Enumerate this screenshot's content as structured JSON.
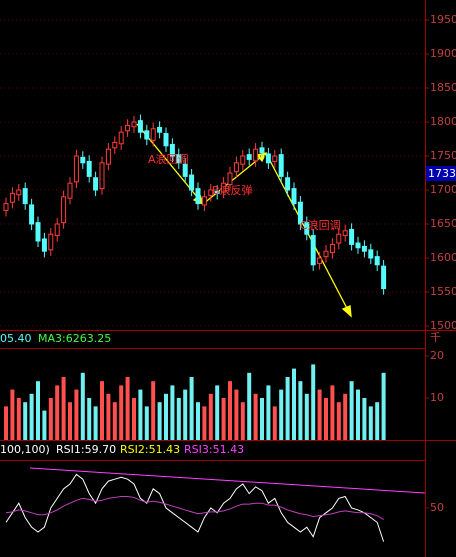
{
  "chart_data": [
    {
      "type": "candlestick",
      "open": [
        1670,
        1682,
        1693,
        1702,
        1678,
        1652,
        1628,
        1612,
        1633,
        1652,
        1688,
        1712,
        1748,
        1742,
        1718,
        1702,
        1738,
        1762,
        1768,
        1787,
        1793,
        1802,
        1787,
        1773,
        1792,
        1783,
        1767,
        1752,
        1738,
        1722,
        1702,
        1678,
        1692,
        1698,
        1697,
        1708,
        1727,
        1738,
        1752,
        1743,
        1762,
        1753,
        1742,
        1752,
        1718,
        1702,
        1682,
        1652,
        1633,
        1592,
        1602,
        1608,
        1622,
        1633,
        1642,
        1622,
        1617,
        1612,
        1602,
        1588
      ],
      "high": [
        1689,
        1704,
        1709,
        1711,
        1687,
        1661,
        1637,
        1644,
        1659,
        1699,
        1719,
        1759,
        1757,
        1751,
        1727,
        1749,
        1769,
        1779,
        1794,
        1804,
        1809,
        1811,
        1796,
        1799,
        1801,
        1792,
        1776,
        1761,
        1747,
        1731,
        1711,
        1699,
        1709,
        1707,
        1719,
        1734,
        1749,
        1759,
        1761,
        1769,
        1771,
        1762,
        1759,
        1761,
        1727,
        1711,
        1691,
        1661,
        1642,
        1609,
        1619,
        1629,
        1644,
        1649,
        1651,
        1631,
        1626,
        1621,
        1611,
        1597
      ],
      "low": [
        1661,
        1673,
        1684,
        1671,
        1641,
        1616,
        1601,
        1603,
        1624,
        1643,
        1679,
        1703,
        1731,
        1711,
        1691,
        1693,
        1729,
        1753,
        1759,
        1778,
        1784,
        1776,
        1766,
        1764,
        1776,
        1756,
        1741,
        1731,
        1711,
        1691,
        1671,
        1669,
        1683,
        1686,
        1688,
        1699,
        1718,
        1729,
        1736,
        1734,
        1746,
        1731,
        1733,
        1711,
        1691,
        1671,
        1641,
        1626,
        1581,
        1583,
        1593,
        1599,
        1613,
        1624,
        1611,
        1606,
        1601,
        1591,
        1581,
        1546
      ],
      "close": [
        1680,
        1695,
        1700,
        1680,
        1650,
        1625,
        1610,
        1635,
        1650,
        1690,
        1710,
        1750,
        1740,
        1720,
        1700,
        1740,
        1760,
        1770,
        1785,
        1795,
        1800,
        1785,
        1775,
        1790,
        1785,
        1765,
        1750,
        1740,
        1720,
        1700,
        1680,
        1690,
        1700,
        1695,
        1710,
        1725,
        1740,
        1750,
        1745,
        1760,
        1755,
        1740,
        1750,
        1720,
        1700,
        1680,
        1650,
        1635,
        1590,
        1600,
        1610,
        1620,
        1635,
        1640,
        1620,
        1615,
        1610,
        1600,
        1590,
        1555
      ],
      "up_color": "#ff3c3c",
      "down_color": "#54fcfc",
      "ylim": [
        1500,
        1950
      ],
      "yticks": [
        1500,
        1550,
        1600,
        1650,
        1700,
        1750,
        1800,
        1850,
        1900,
        1950
      ],
      "current_price_label": "1733.",
      "annotations": [
        "A浪回调",
        "B浪反弹",
        "C浪回调"
      ]
    },
    {
      "type": "bar",
      "header": [
        "05.40",
        "MA3:6263.25"
      ],
      "unit_label": "千",
      "values": [
        8,
        12,
        10,
        9,
        11,
        14,
        7,
        10,
        13,
        15,
        9,
        12,
        16,
        10,
        8,
        14,
        11,
        9,
        13,
        15,
        10,
        12,
        8,
        14,
        9,
        11,
        13,
        10,
        12,
        15,
        9,
        8,
        11,
        13,
        10,
        14,
        12,
        9,
        16,
        11,
        10,
        13,
        8,
        12,
        15,
        17,
        14,
        11,
        18,
        12,
        10,
        13,
        9,
        11,
        14,
        12,
        10,
        8,
        9,
        16
      ],
      "ylim": [
        0,
        20
      ],
      "yticks": [
        10,
        20
      ]
    },
    {
      "type": "line",
      "header": [
        "100,100)",
        "RSI1:59.70",
        "RSI2:51.43",
        "RSI3:51.43"
      ],
      "series": [
        {
          "color": "#ffffff",
          "values": [
            35,
            45,
            55,
            40,
            30,
            25,
            30,
            50,
            60,
            70,
            75,
            85,
            80,
            65,
            55,
            70,
            78,
            80,
            82,
            80,
            75,
            60,
            55,
            70,
            65,
            50,
            45,
            40,
            35,
            30,
            25,
            40,
            50,
            45,
            55,
            60,
            70,
            75,
            65,
            72,
            68,
            55,
            60,
            45,
            35,
            30,
            25,
            30,
            20,
            40,
            45,
            50,
            60,
            62,
            50,
            48,
            45,
            40,
            35,
            15
          ]
        },
        {
          "color": "#c040c0",
          "values": [
            45,
            46,
            48,
            47,
            45,
            43,
            43,
            45,
            48,
            52,
            55,
            58,
            60,
            59,
            57,
            58,
            60,
            61,
            62,
            62,
            61,
            58,
            56,
            57,
            56,
            54,
            52,
            50,
            48,
            46,
            44,
            45,
            46,
            46,
            47,
            49,
            52,
            54,
            54,
            55,
            55,
            53,
            53,
            51,
            48,
            46,
            44,
            43,
            41,
            42,
            43,
            44,
            46,
            47,
            46,
            45,
            45,
            44,
            42,
            38
          ]
        }
      ],
      "ylim": [
        0,
        100
      ],
      "yticks": [
        50
      ]
    }
  ]
}
